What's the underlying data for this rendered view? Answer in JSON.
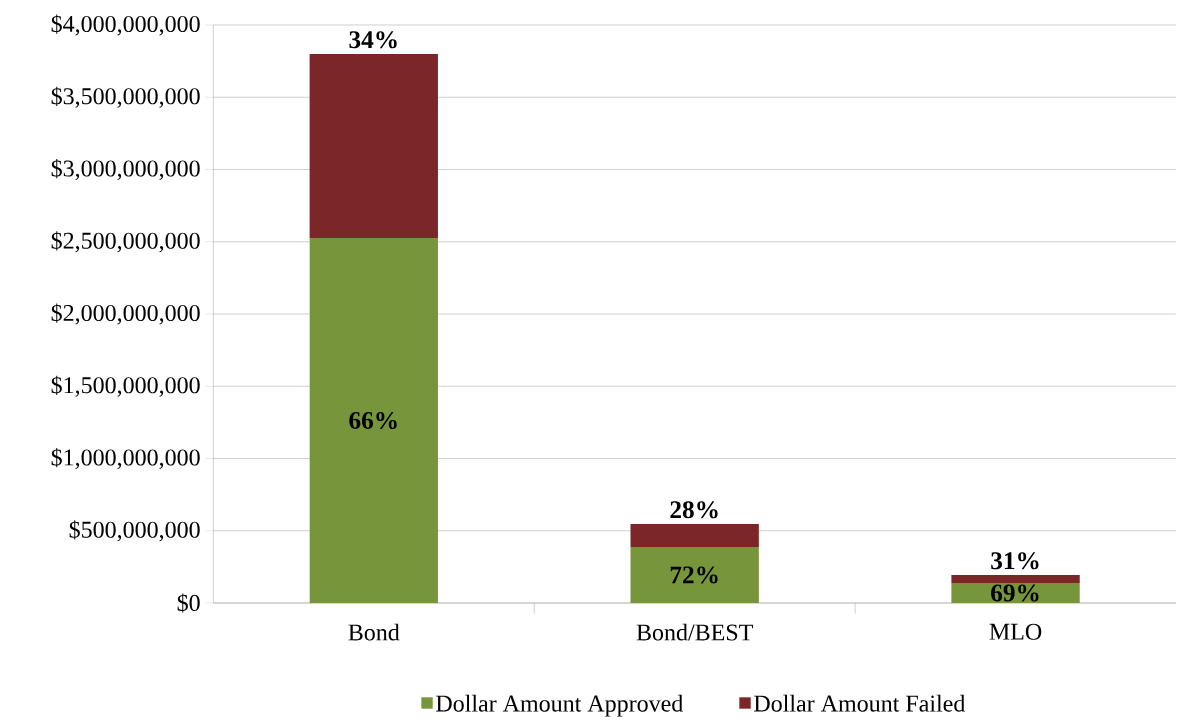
{
  "chart_data": {
    "type": "bar",
    "stacked": true,
    "categories": [
      "Bond",
      "Bond/BEST",
      "MLO"
    ],
    "series": [
      {
        "name": "Dollar Amount Approved",
        "color": "#77963b",
        "values": [
          2526000000,
          388000000,
          138000000
        ]
      },
      {
        "name": "Dollar Amount Failed",
        "color": "#7b2629",
        "values": [
          1274000000,
          159000000,
          56000000
        ]
      }
    ],
    "annotations": [
      "66%",
      "34%",
      "72%",
      "28%",
      "69%",
      "31%"
    ],
    "ylim": [
      0,
      4000000000
    ],
    "yticks": [
      {
        "value": 0,
        "label": "$0"
      },
      {
        "value": 500000000,
        "label": "$500,000,000"
      },
      {
        "value": 1000000000,
        "label": "$1,000,000,000"
      },
      {
        "value": 1500000000,
        "label": "$1,500,000,000"
      },
      {
        "value": 2000000000,
        "label": "$2,000,000,000"
      },
      {
        "value": 2500000000,
        "label": "$2,500,000,000"
      },
      {
        "value": 3000000000,
        "label": "$3,000,000,000"
      },
      {
        "value": 3500000000,
        "label": "$3,500,000,000"
      },
      {
        "value": 4000000000,
        "label": "$4,000,000,000"
      }
    ],
    "grid": "y",
    "legend": "bottom"
  }
}
